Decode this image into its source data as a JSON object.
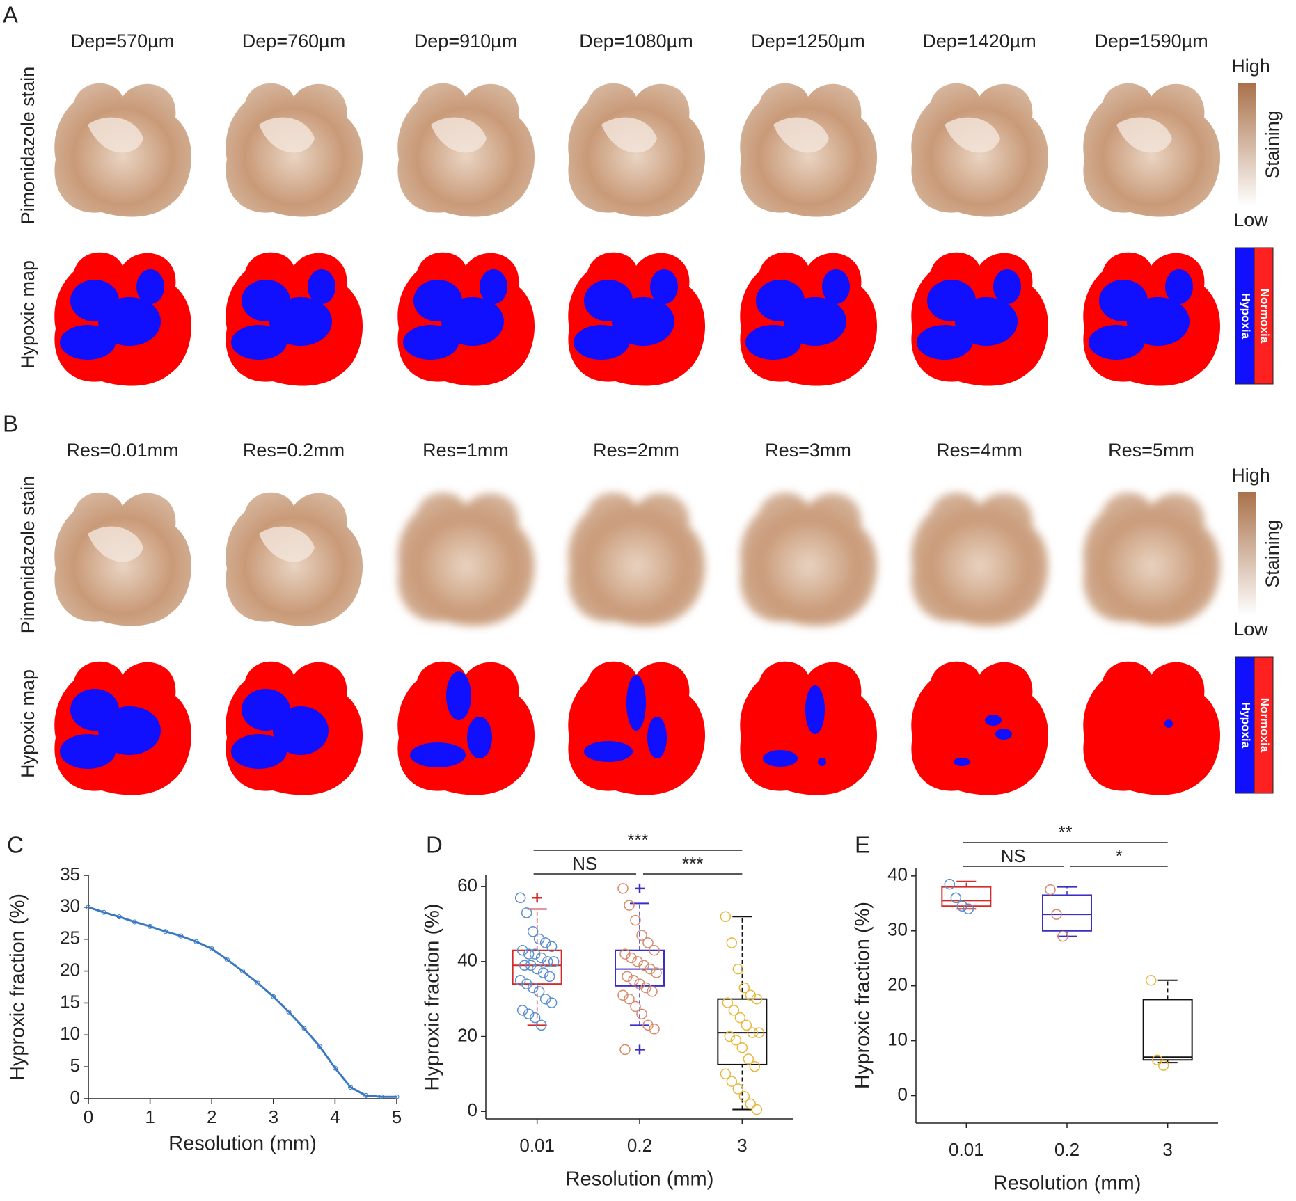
{
  "figure": {
    "panel_a": {
      "label": "A",
      "columns": [
        "Dep=570µm",
        "Dep=760µm",
        "Dep=910µm",
        "Dep=1080µm",
        "Dep=1250µm",
        "Dep=1420µm",
        "Dep=1590µm"
      ],
      "row_labels": [
        "Pimonidazole stain",
        "Hypoxic map"
      ],
      "colorbar": {
        "high": "High",
        "low": "Low",
        "title": "Staining"
      },
      "legend": [
        "Hypoxia",
        "Normoxia"
      ]
    },
    "panel_b": {
      "label": "B",
      "columns": [
        "Res=0.01mm",
        "Res=0.2mm",
        "Res=1mm",
        "Res=2mm",
        "Res=3mm",
        "Res=4mm",
        "Res=5mm"
      ],
      "row_labels": [
        "Pimonidazole stain",
        "Hypoxic map"
      ],
      "colorbar": {
        "high": "High",
        "low": "Low",
        "title": "Staining"
      },
      "legend": [
        "Hypoxia",
        "Normoxia"
      ]
    }
  },
  "chart_data": [
    {
      "type": "line",
      "panel": "C",
      "color": "#3a78c2",
      "x_label": "Resolution (mm)",
      "y_label": "Hyproxic fraction (%)",
      "x": [
        0,
        0.25,
        0.5,
        0.75,
        1,
        1.25,
        1.5,
        1.75,
        2,
        2.25,
        2.5,
        2.75,
        3,
        3.25,
        3.5,
        3.75,
        4,
        4.25,
        4.5,
        4.75,
        5
      ],
      "values": [
        30,
        29.2,
        28.5,
        27.7,
        27,
        26.2,
        25.5,
        24.6,
        23.5,
        21.8,
        20,
        18.1,
        16,
        13.6,
        11,
        8.2,
        4.8,
        1.8,
        0.5,
        0.3,
        0.3
      ],
      "xlim": [
        0,
        5
      ],
      "xticks": [
        0,
        1,
        2,
        3,
        4,
        5
      ],
      "ylim": [
        0,
        35
      ],
      "yticks": [
        0,
        5,
        10,
        15,
        20,
        25,
        30,
        35
      ]
    },
    {
      "type": "box",
      "panel": "D",
      "x_label": "Resolution (mm)",
      "y_label": "Hyproxic fraction (%)",
      "categories": [
        "0.01",
        "0.2",
        "3"
      ],
      "ylim": [
        -2,
        63
      ],
      "yticks": [
        0,
        20,
        40,
        60
      ],
      "boxes": [
        {
          "low": 23,
          "q1": 34,
          "median": 39,
          "q3": 43,
          "high": 54,
          "outliers": [
            57
          ],
          "color": "#d42a2a",
          "point_color": "#5b8fd0",
          "points": [
            57,
            53,
            48,
            46,
            45,
            44,
            43,
            42,
            42,
            41,
            40,
            40,
            39,
            39,
            38,
            37,
            36,
            35,
            34,
            33,
            32,
            30,
            29,
            27,
            26,
            25,
            23
          ]
        },
        {
          "low": 23,
          "q1": 33.5,
          "median": 38,
          "q3": 43,
          "high": 55.5,
          "outliers": [
            59.5,
            16.5
          ],
          "color": "#3a2ec4",
          "point_color": "#d98a6a",
          "points": [
            59.5,
            55,
            51,
            47,
            45,
            43,
            42,
            41,
            40,
            39,
            38,
            37,
            36,
            35,
            34,
            33,
            32,
            31,
            30,
            28,
            26,
            23,
            22,
            16.5
          ]
        },
        {
          "low": 0.5,
          "q1": 12.5,
          "median": 21,
          "q3": 30,
          "high": 52,
          "outliers": [],
          "color": "#111111",
          "point_color": "#e8b83c",
          "points": [
            52,
            45,
            38,
            33,
            31,
            30,
            29,
            27,
            25,
            23,
            21,
            21,
            20,
            19,
            17,
            14,
            12,
            10,
            8,
            6,
            4,
            2,
            0.5
          ]
        }
      ],
      "brackets": [
        {
          "label": "***",
          "from": "0.01",
          "to": "3"
        },
        {
          "label": "NS",
          "from": "0.01",
          "to": "0.2"
        },
        {
          "label": "***",
          "from": "0.2",
          "to": "3"
        }
      ]
    },
    {
      "type": "box",
      "panel": "E",
      "x_label": "Resolution (mm)",
      "y_label": "Hyproxic fraction (%)",
      "categories": [
        "0.01",
        "0.2",
        "3"
      ],
      "ylim": [
        -5,
        41.5
      ],
      "yticks": [
        0,
        10,
        20,
        30,
        40
      ],
      "boxes": [
        {
          "low": 34,
          "q1": 34.5,
          "median": 35.5,
          "q3": 38,
          "high": 39,
          "outliers": [],
          "color": "#d42a2a",
          "point_color": "#5b8fd0",
          "points": [
            38.5,
            36,
            34.5,
            34
          ]
        },
        {
          "low": 29,
          "q1": 30,
          "median": 33,
          "q3": 36.5,
          "high": 38,
          "outliers": [],
          "color": "#3a2ec4",
          "point_color": "#d98a6a",
          "points": [
            37.5,
            33,
            29
          ]
        },
        {
          "low": 6,
          "q1": 6.5,
          "median": 7,
          "q3": 17.5,
          "high": 21,
          "outliers": [],
          "color": "#111111",
          "point_color": "#e8b83c",
          "points": [
            21,
            6.5,
            5.5
          ]
        }
      ],
      "brackets": [
        {
          "label": "**",
          "from": "0.01",
          "to": "3"
        },
        {
          "label": "NS",
          "from": "0.01",
          "to": "0.2"
        },
        {
          "label": "*",
          "from": "0.2",
          "to": "3"
        }
      ]
    }
  ]
}
